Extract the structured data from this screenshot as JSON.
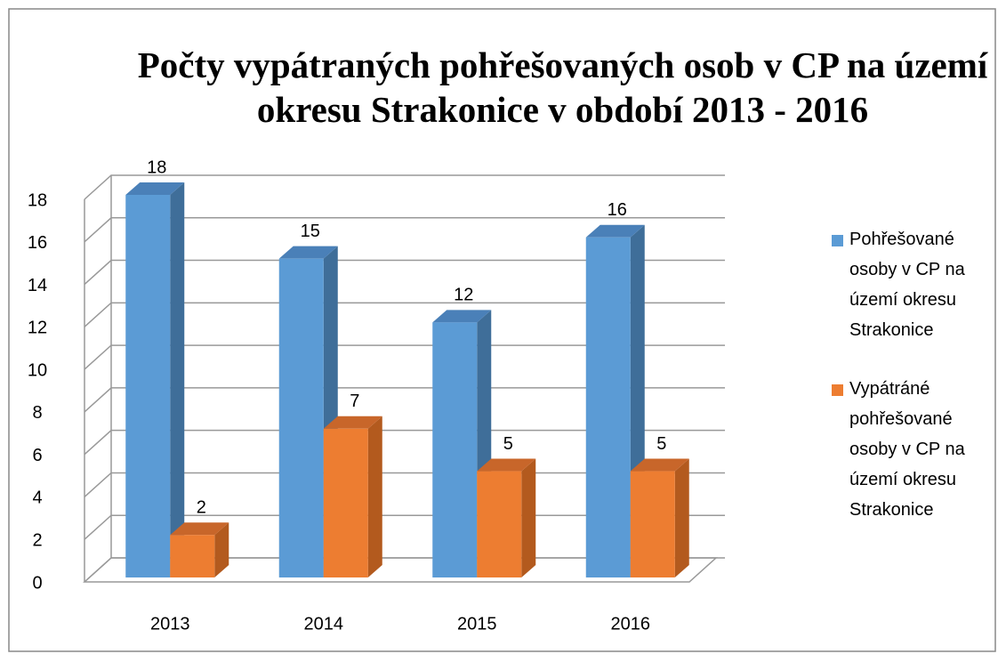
{
  "chart_data": {
    "type": "bar3d",
    "title": "Počty vypátraných pohřešovaných osob v CP na území okresu Strakonice v období 2013 - 2016",
    "categories": [
      "2013",
      "2014",
      "2015",
      "2016"
    ],
    "series": [
      {
        "name": "Pohřešované osoby v CP na území okresu Strakonice",
        "color": "#5b9bd5",
        "side": "#3f6e99",
        "top": "#4a80b8",
        "values": [
          18,
          15,
          12,
          16
        ]
      },
      {
        "name": "Vypátráné pohřešované osoby v CP na území okresu Strakonice",
        "color": "#ed7d31",
        "side": "#b35a1e",
        "top": "#c8662a",
        "values": [
          2,
          7,
          5,
          5
        ]
      }
    ],
    "ylim": [
      0,
      18
    ],
    "yticks": [
      0,
      2,
      4,
      6,
      8,
      10,
      12,
      14,
      16,
      18
    ],
    "grid": true,
    "legend": "right"
  }
}
